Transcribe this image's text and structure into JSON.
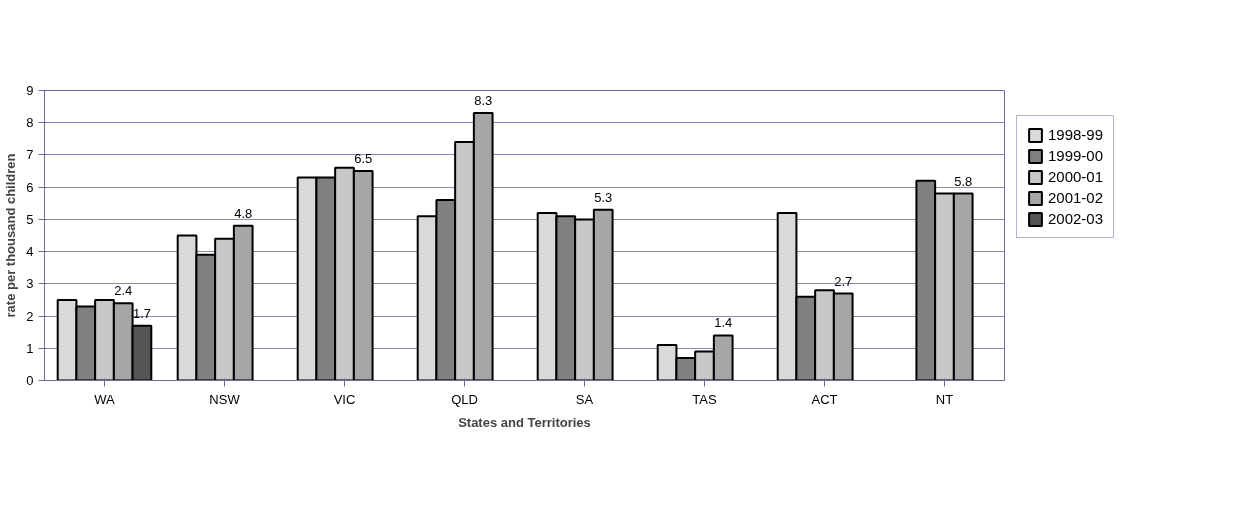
{
  "chart_data": {
    "type": "bar",
    "xlabel": "States and Territories",
    "ylabel": "rate per thousand children",
    "categories": [
      "WA",
      "NSW",
      "VIC",
      "QLD",
      "SA",
      "TAS",
      "ACT",
      "NT"
    ],
    "series": [
      {
        "name": "1998-99",
        "color": "#d9d9d9",
        "values": [
          2.5,
          4.5,
          6.3,
          5.1,
          5.2,
          1.1,
          5.2,
          null
        ]
      },
      {
        "name": "1999-00",
        "color": "#808080",
        "values": [
          2.3,
          3.9,
          6.3,
          5.6,
          5.1,
          0.7,
          2.6,
          6.2
        ]
      },
      {
        "name": "2000-01",
        "color": "#c8c8c8",
        "values": [
          2.5,
          4.4,
          6.6,
          7.4,
          5.0,
          0.9,
          2.8,
          5.8
        ]
      },
      {
        "name": "2001-02",
        "color": "#a6a6a6",
        "values": [
          2.4,
          4.8,
          6.5,
          8.3,
          5.3,
          1.4,
          2.7,
          5.8
        ],
        "value_labels": [
          "2.4",
          "4.8",
          "6.5",
          "8.3",
          "5.3",
          "1.4",
          "2.7",
          "5.8"
        ]
      },
      {
        "name": "2002-03",
        "color": "#555555",
        "values": [
          1.7,
          null,
          null,
          null,
          null,
          null,
          null,
          null
        ],
        "value_labels": [
          "1.7",
          null,
          null,
          null,
          null,
          null,
          null,
          null
        ]
      }
    ],
    "ylim": [
      0,
      9
    ],
    "yticks": [
      0,
      1,
      2,
      3,
      4,
      5,
      6,
      7,
      8,
      9
    ],
    "grid": "y",
    "legend": "right"
  }
}
